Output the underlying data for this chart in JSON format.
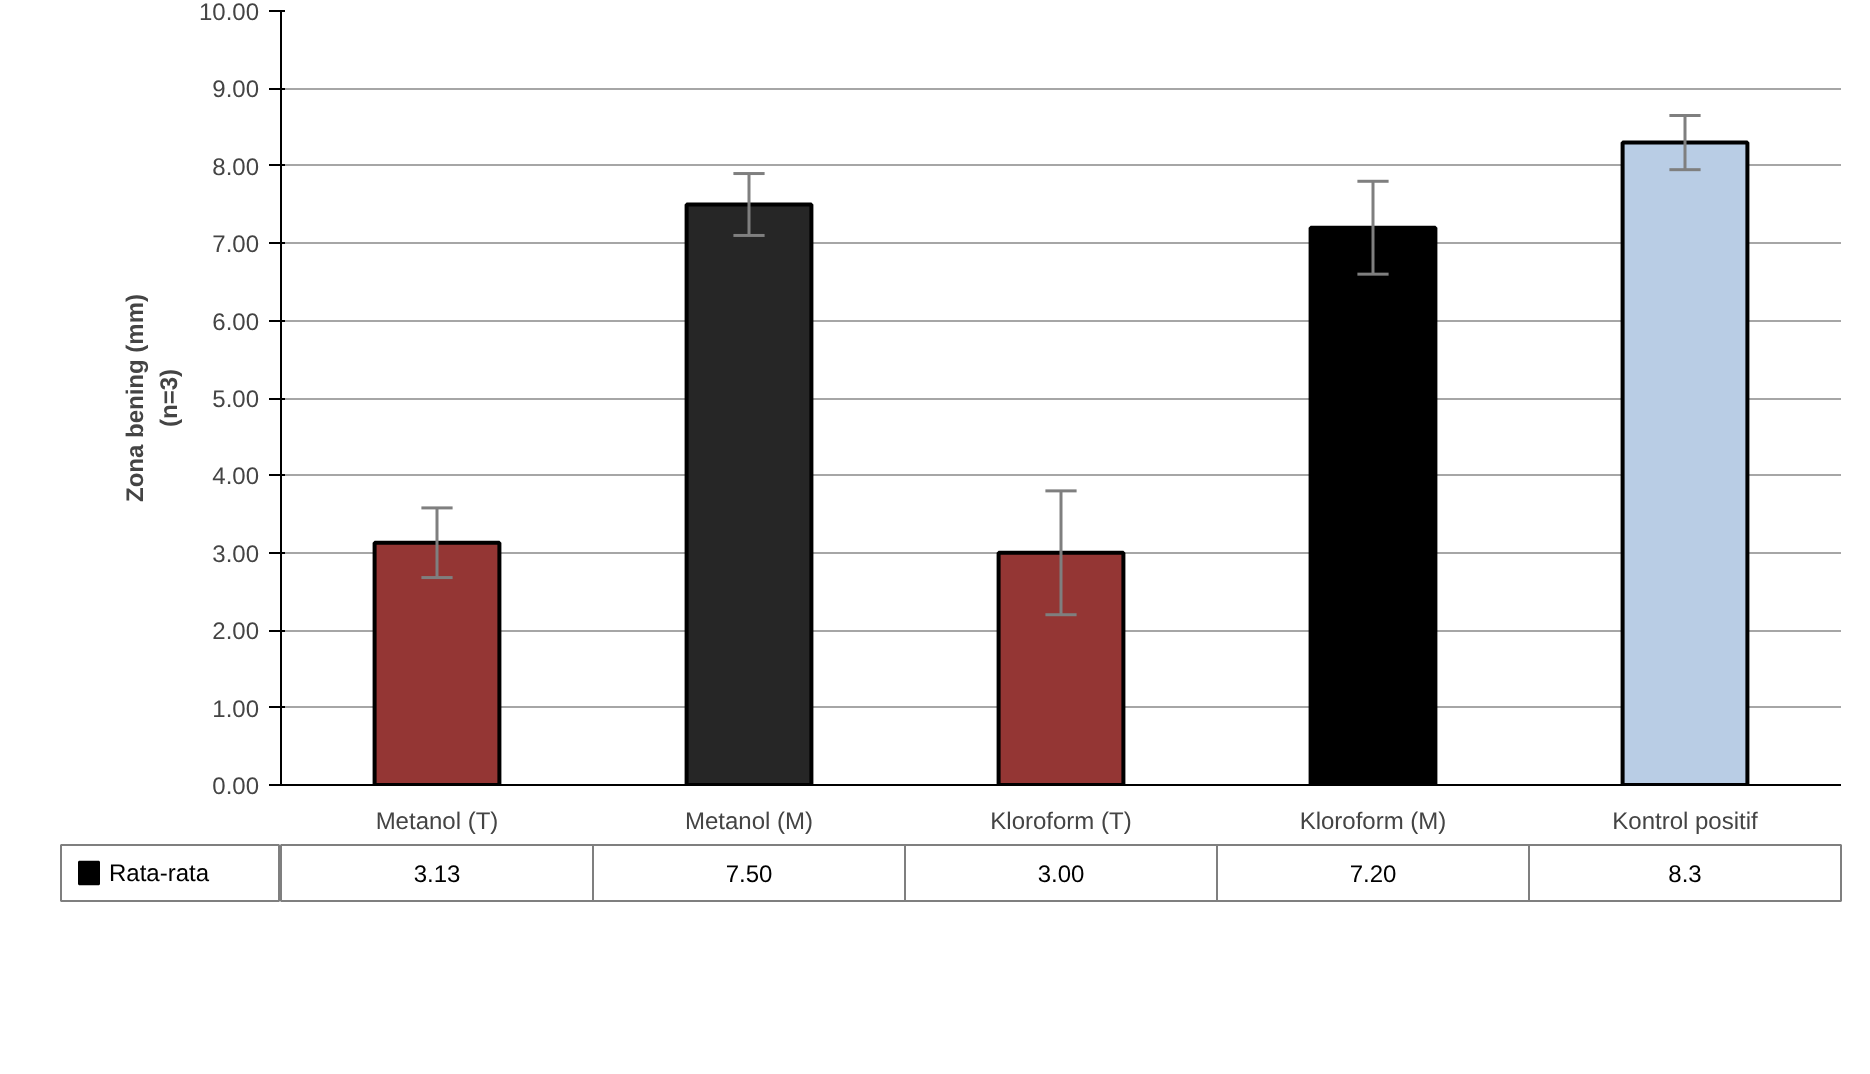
{
  "chart_data": {
    "type": "bar",
    "categories": [
      "Metanol (T)",
      "Metanol (M)",
      "Kloroform (T)",
      "Kloroform (M)",
      "Kontrol positif"
    ],
    "series": [
      {
        "name": "Rata-rata",
        "color": "#000000",
        "colors": [
          "#943634",
          "#262626",
          "#943634",
          "#000000",
          "#b9cde5"
        ],
        "values": [
          3.13,
          7.5,
          3.0,
          7.2,
          8.3
        ],
        "errors": [
          0.45,
          0.4,
          0.8,
          0.6,
          0.35
        ],
        "value_labels": [
          "3.13",
          "7.50",
          "3.00",
          "7.20",
          "8.3"
        ]
      }
    ],
    "ylabel": "Zona bening (mm)\n(n=3)",
    "ylim": [
      0,
      10
    ],
    "yticks": [
      {
        "value": 0,
        "label": "0.00"
      },
      {
        "value": 1,
        "label": "1.00"
      },
      {
        "value": 2,
        "label": "2.00"
      },
      {
        "value": 3,
        "label": "3.00"
      },
      {
        "value": 4,
        "label": "4.00"
      },
      {
        "value": 5,
        "label": "5.00"
      },
      {
        "value": 6,
        "label": "6.00"
      },
      {
        "value": 7,
        "label": "7.00"
      },
      {
        "value": 8,
        "label": "8.00"
      },
      {
        "value": 9,
        "label": "9.00"
      },
      {
        "value": 10,
        "label": "10.00"
      }
    ],
    "grid": "y",
    "legend": "bottom"
  }
}
